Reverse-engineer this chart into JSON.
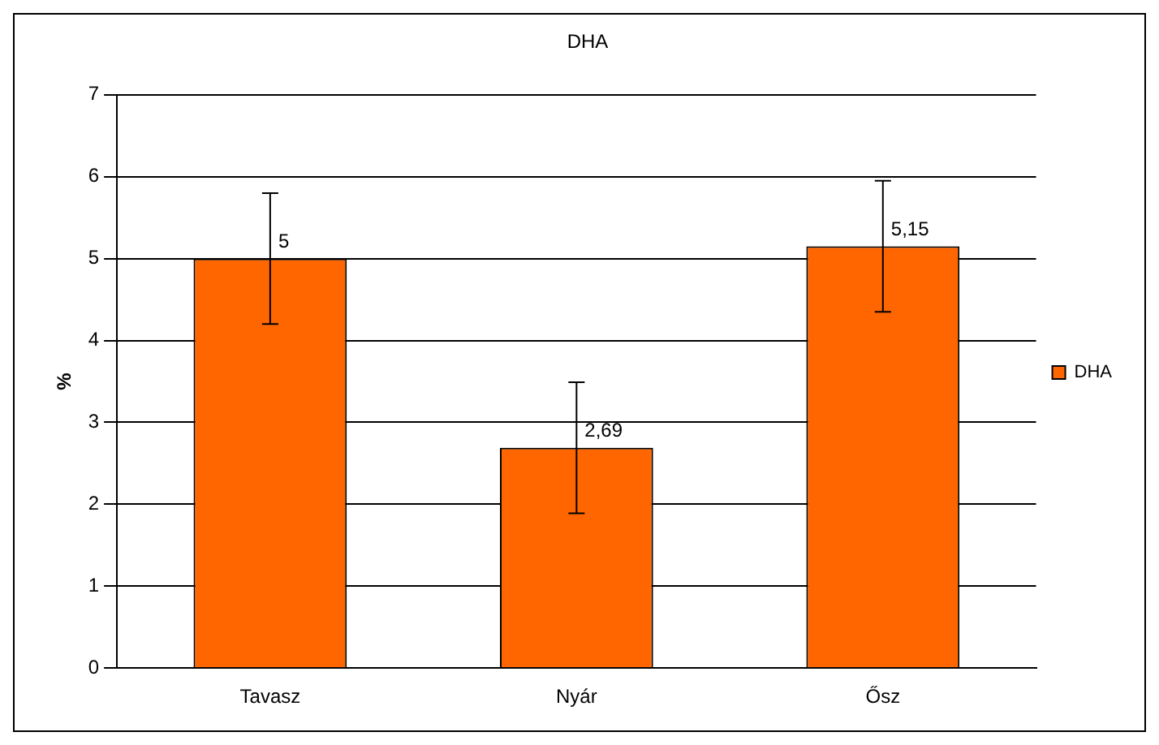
{
  "chart_data": {
    "type": "bar",
    "title": "DHA",
    "ylabel": "%",
    "categories": [
      "Tavasz",
      "Nyár",
      "Ősz"
    ],
    "series": [
      {
        "name": "DHA",
        "color": "#ff6600",
        "values": [
          5,
          2.69,
          5.15
        ],
        "errors": [
          0.8,
          0.8,
          0.8
        ],
        "value_labels": [
          "5",
          "2,69",
          "5,15"
        ]
      }
    ],
    "ylim": [
      0,
      7
    ],
    "yticks": [
      0,
      1,
      2,
      3,
      4,
      5,
      6,
      7
    ],
    "grid": "y",
    "legend": "right"
  }
}
